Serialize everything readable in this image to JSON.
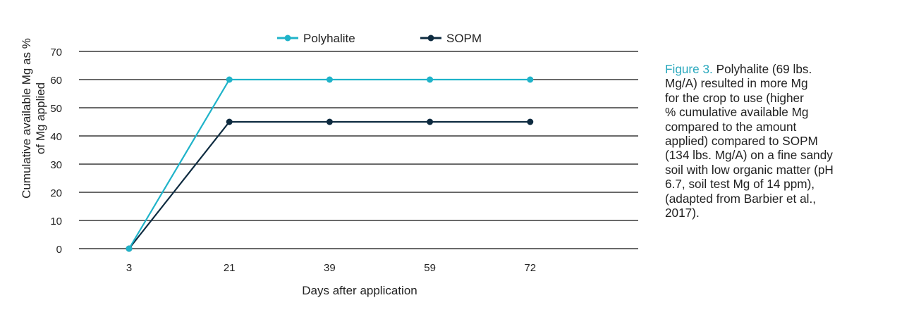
{
  "chart_data": {
    "type": "line",
    "categories": [
      "3",
      "21",
      "39",
      "59",
      "72"
    ],
    "series": [
      {
        "name": "Polyhalite",
        "values": [
          0,
          60,
          60,
          60,
          60
        ],
        "color": "#1fb3c9"
      },
      {
        "name": "SOPM",
        "values": [
          0,
          45,
          45,
          45,
          45
        ],
        "color": "#0e2b40"
      }
    ],
    "xlabel": "Days after application",
    "ylabel": [
      "Cumulative available Mg as %",
      "of Mg applied"
    ],
    "ylim": [
      0,
      70
    ],
    "yticks": [
      0,
      10,
      20,
      30,
      40,
      50,
      60,
      70
    ],
    "grid": true,
    "legend": "top-center"
  },
  "caption": {
    "figure_label": "Figure 3.",
    "lines": [
      " Polyhalite (69 lbs.",
      "Mg/A) resulted in more Mg",
      "for the crop to use (higher",
      "% cumulative available Mg",
      "compared to the amount",
      "applied) compared to SOPM",
      "(134 lbs. Mg/A) on a fine sandy",
      "soil with low organic matter (pH",
      "6.7, soil test Mg of 14 ppm),",
      "(adapted from Barbier et al.,",
      "2017)."
    ]
  }
}
